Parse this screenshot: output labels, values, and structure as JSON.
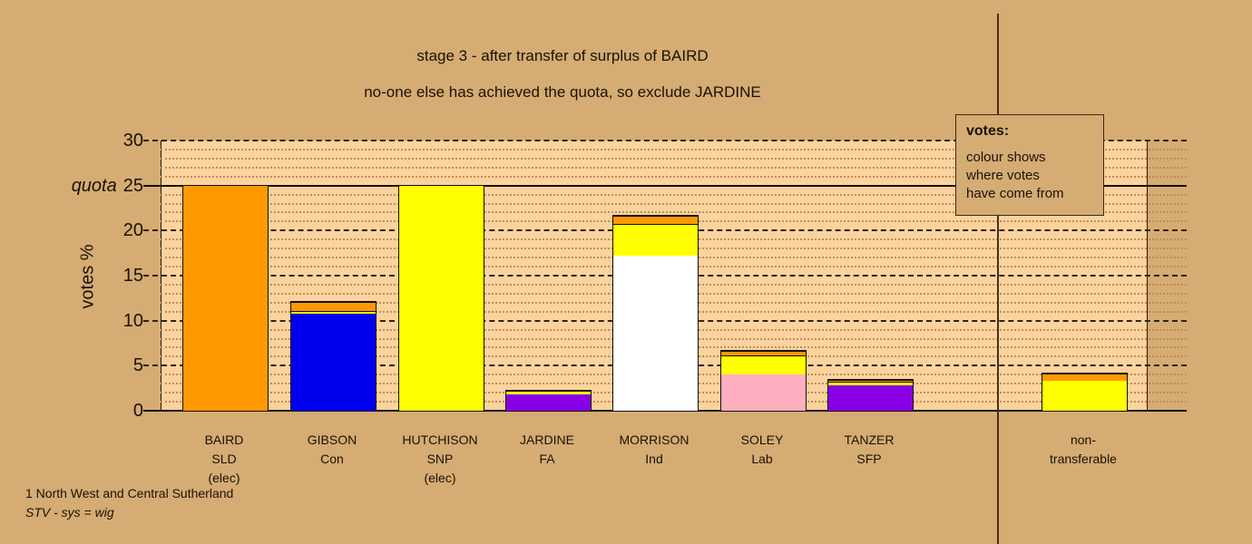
{
  "page": {
    "title": "stage 3 - after transfer of surplus of BAIRD",
    "subtitle": "no-one else has achieved the quota, so exclude JARDINE",
    "footer_line1": "1 North West and Central Sutherland",
    "footer_line2": "STV - sys = wig"
  },
  "legend": {
    "heading": "votes:",
    "body_lines": [
      "colour shows",
      "where votes",
      "have come from"
    ]
  },
  "colors": {
    "page_bg": "#D5AC73",
    "plot_bg": "#FCD39E",
    "orange": "#FF9900",
    "blue": "#0000EE",
    "yellow": "#FFFF00",
    "purple": "#8800E6",
    "white": "#FFFFFF",
    "pink": "#FFB0C0",
    "gridline_dark": "#33230e"
  },
  "chart_data": {
    "type": "bar",
    "stacked": true,
    "title": "stage 3 - after transfer of surplus of BAIRD",
    "subtitle": "no-one else has achieved the quota, so exclude JARDINE",
    "xlabel": "",
    "ylabel": "votes %",
    "ylim": [
      0,
      30
    ],
    "y_ticks": [
      0,
      5,
      10,
      15,
      20,
      25,
      30
    ],
    "quota": {
      "value": 25,
      "label": "quota"
    },
    "grid": "dashed major lines every 5%, dotted minor lines every 1%, solid line at quota (25) and baseline (0)",
    "legend_position": "top-right",
    "categories": [
      "BAIRD SLD (elec)",
      "GIBSON Con",
      "HUTCHISON SNP (elec)",
      "JARDINE FA",
      "MORRISON Ind",
      "SOLEY Lab",
      "TANZER SFP",
      "non-transferable"
    ],
    "bars": [
      {
        "id": "baird",
        "label_lines": [
          "BAIRD",
          "SLD",
          "(elec)"
        ],
        "total": 25.0,
        "segments": [
          {
            "color": "#FF9900",
            "value": 25.0
          }
        ]
      },
      {
        "id": "gibson",
        "label_lines": [
          "GIBSON",
          "Con"
        ],
        "total": 12.1,
        "segments": [
          {
            "color": "#0000EE",
            "value": 10.8
          },
          {
            "color": "#FFFF00",
            "value": 0.3
          },
          {
            "color": "#FF9900",
            "value": 1.0
          }
        ]
      },
      {
        "id": "hutchison",
        "label_lines": [
          "HUTCHISON",
          "SNP",
          "(elec)"
        ],
        "total": 25.0,
        "segments": [
          {
            "color": "#FFFF00",
            "value": 25.0
          }
        ]
      },
      {
        "id": "jardine",
        "label_lines": [
          "JARDINE",
          "FA"
        ],
        "total": 2.2,
        "segments": [
          {
            "color": "#8800E6",
            "value": 1.8
          },
          {
            "color": "#FFFF00",
            "value": 0.4
          }
        ]
      },
      {
        "id": "morrison",
        "label_lines": [
          "MORRISON",
          "Ind"
        ],
        "total": 21.6,
        "segments": [
          {
            "color": "#FFFFFF",
            "value": 17.2
          },
          {
            "color": "#FFFF00",
            "value": 3.5
          },
          {
            "color": "#FF9900",
            "value": 0.9
          }
        ]
      },
      {
        "id": "soley",
        "label_lines": [
          "SOLEY",
          "Lab"
        ],
        "total": 6.6,
        "segments": [
          {
            "color": "#FFB0C0",
            "value": 4.0
          },
          {
            "color": "#FFFF00",
            "value": 2.1
          },
          {
            "color": "#FF9900",
            "value": 0.5
          }
        ]
      },
      {
        "id": "tanzer",
        "label_lines": [
          "TANZER",
          "SFP"
        ],
        "total": 3.4,
        "segments": [
          {
            "color": "#8800E6",
            "value": 2.8
          },
          {
            "color": "#FFFF00",
            "value": 0.4
          },
          {
            "color": "#FF9900",
            "value": 0.2
          }
        ]
      },
      {
        "id": "non-transferable",
        "label_lines": [
          "non-",
          "transferable"
        ],
        "total": 4.1,
        "segments": [
          {
            "color": "#FFFF00",
            "value": 3.3
          },
          {
            "color": "#FF9900",
            "value": 0.8
          }
        ]
      }
    ]
  }
}
